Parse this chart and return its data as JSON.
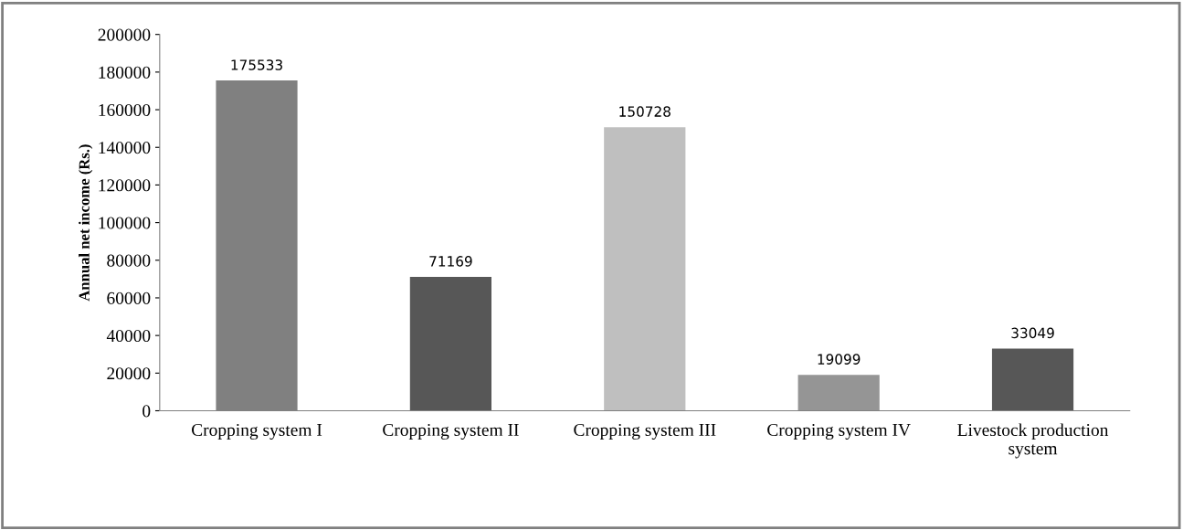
{
  "chart_data": {
    "type": "bar",
    "ylabel": "Annual net income (Rs.)",
    "categories": [
      "Cropping system I",
      "Cropping system II",
      "Cropping system III",
      "Cropping system IV",
      "Livestock production\nsystem"
    ],
    "values": [
      175533,
      71169,
      150728,
      19099,
      33049
    ],
    "colors": [
      "#808080",
      "#575757",
      "#bfbfbf",
      "#959595",
      "#575757"
    ],
    "ylim": [
      0,
      200000
    ],
    "yticks": [
      0,
      20000,
      40000,
      60000,
      80000,
      100000,
      120000,
      140000,
      160000,
      180000,
      200000
    ],
    "data_labels": true,
    "grid": false,
    "legend": false
  }
}
